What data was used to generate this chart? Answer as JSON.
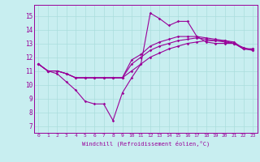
{
  "xlabel": "Windchill (Refroidissement éolien,°C)",
  "background_color": "#c8eef0",
  "line_color": "#990099",
  "xlim": [
    -0.5,
    23.5
  ],
  "ylim": [
    6.5,
    15.8
  ],
  "yticks": [
    7,
    8,
    9,
    10,
    11,
    12,
    13,
    14,
    15
  ],
  "xticks": [
    0,
    1,
    2,
    3,
    4,
    5,
    6,
    7,
    8,
    9,
    10,
    11,
    12,
    13,
    14,
    15,
    16,
    17,
    18,
    19,
    20,
    21,
    22,
    23
  ],
  "grid_color": "#aadddd",
  "line1_x": [
    0,
    1,
    2,
    3,
    4,
    5,
    6,
    7,
    8,
    9,
    10,
    11,
    12,
    13,
    14,
    15,
    16,
    17,
    18,
    19,
    20,
    21,
    22,
    23
  ],
  "line1_y": [
    11.5,
    11.0,
    10.8,
    10.2,
    9.6,
    8.8,
    8.6,
    8.6,
    7.4,
    9.4,
    10.5,
    11.5,
    15.2,
    14.8,
    14.3,
    14.6,
    14.6,
    13.5,
    13.1,
    13.0,
    13.0,
    13.0,
    12.6,
    12.6
  ],
  "line2_x": [
    0,
    1,
    2,
    3,
    4,
    5,
    6,
    7,
    8,
    9,
    10,
    11,
    12,
    13,
    14,
    15,
    16,
    17,
    18,
    19,
    20,
    21,
    22,
    23
  ],
  "line2_y": [
    11.5,
    11.0,
    11.0,
    10.8,
    10.5,
    10.5,
    10.5,
    10.5,
    10.5,
    10.5,
    11.0,
    11.5,
    12.0,
    12.3,
    12.6,
    12.8,
    13.0,
    13.1,
    13.2,
    13.2,
    13.2,
    13.1,
    12.6,
    12.6
  ],
  "line3_x": [
    0,
    1,
    2,
    3,
    4,
    5,
    6,
    7,
    8,
    9,
    10,
    11,
    12,
    13,
    14,
    15,
    16,
    17,
    18,
    "19",
    20,
    21,
    22,
    23
  ],
  "line3_y": [
    11.5,
    11.0,
    11.0,
    10.8,
    10.5,
    10.5,
    10.5,
    10.5,
    10.5,
    10.5,
    11.5,
    12.0,
    12.5,
    12.8,
    13.0,
    13.2,
    13.3,
    13.4,
    13.3,
    13.2,
    13.1,
    13.0,
    12.6,
    12.5
  ],
  "line4_x": [
    0,
    1,
    2,
    3,
    4,
    5,
    6,
    7,
    8,
    9,
    10,
    11,
    12,
    13,
    14,
    15,
    16,
    17,
    18,
    19,
    20,
    21,
    22,
    23
  ],
  "line4_y": [
    11.5,
    11.0,
    11.0,
    10.8,
    10.5,
    10.5,
    10.5,
    10.5,
    10.5,
    10.5,
    11.8,
    12.2,
    12.8,
    13.1,
    13.3,
    13.5,
    13.5,
    13.5,
    13.4,
    13.3,
    13.2,
    13.0,
    12.7,
    12.5
  ]
}
